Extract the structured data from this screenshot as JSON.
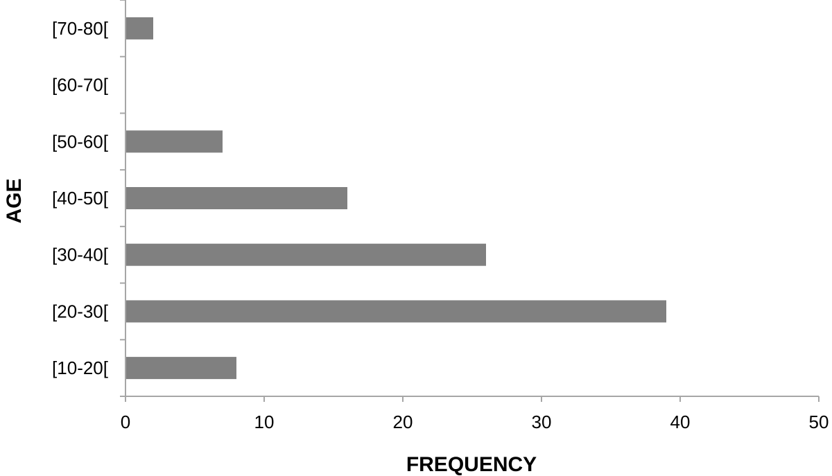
{
  "chart_data": {
    "type": "bar",
    "orientation": "horizontal",
    "categories": [
      "[10-20[",
      "[20-30[",
      "[30-40[",
      "[40-50[",
      "[50-60[",
      "[60-70[",
      "[70-80["
    ],
    "values": [
      8,
      39,
      26,
      16,
      7,
      0,
      2
    ],
    "xlabel": "FREQUENCY",
    "ylabel": "AGE",
    "xlim": [
      0,
      50
    ],
    "xticks": [
      0,
      10,
      20,
      30,
      40,
      50
    ],
    "grid": false,
    "bar_color": "#808080",
    "axis_color": "#a6a6a6"
  }
}
